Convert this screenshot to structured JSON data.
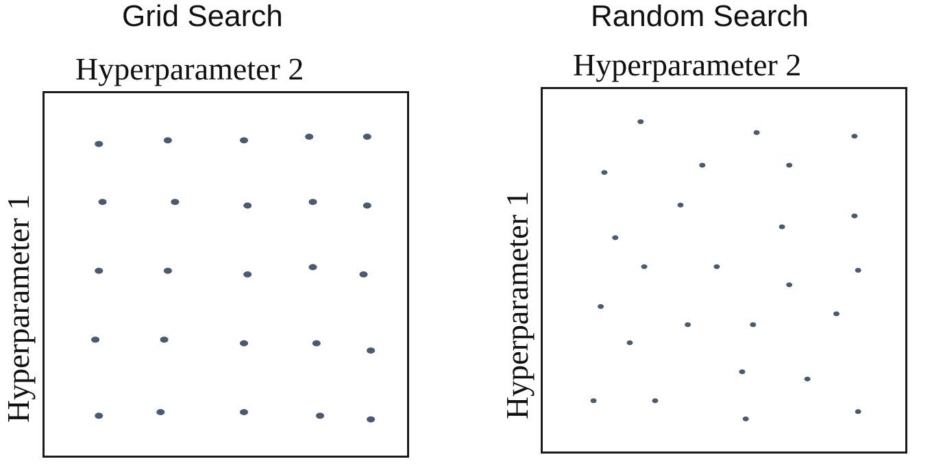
{
  "point_color": "#4a5a70",
  "panels": [
    {
      "id": "grid",
      "title": "Grid Search",
      "x_label": "Hyperparameter 2",
      "y_label": "Hyperparameter 1",
      "points": [
        [
          0.15,
          0.86
        ],
        [
          0.34,
          0.87
        ],
        [
          0.55,
          0.87
        ],
        [
          0.73,
          0.88
        ],
        [
          0.89,
          0.88
        ],
        [
          0.16,
          0.7
        ],
        [
          0.36,
          0.7
        ],
        [
          0.56,
          0.69
        ],
        [
          0.74,
          0.7
        ],
        [
          0.89,
          0.69
        ],
        [
          0.15,
          0.51
        ],
        [
          0.34,
          0.51
        ],
        [
          0.56,
          0.5
        ],
        [
          0.74,
          0.52
        ],
        [
          0.88,
          0.5
        ],
        [
          0.14,
          0.32
        ],
        [
          0.33,
          0.32
        ],
        [
          0.55,
          0.31
        ],
        [
          0.75,
          0.31
        ],
        [
          0.9,
          0.29
        ],
        [
          0.15,
          0.11
        ],
        [
          0.32,
          0.12
        ],
        [
          0.55,
          0.12
        ],
        [
          0.76,
          0.11
        ],
        [
          0.9,
          0.1
        ]
      ]
    },
    {
      "id": "random",
      "title": "Random Search",
      "x_label": "Hyperparameter 2",
      "y_label": "Hyperparameter 1",
      "points": [
        [
          0.27,
          0.91
        ],
        [
          0.59,
          0.88
        ],
        [
          0.86,
          0.87
        ],
        [
          0.17,
          0.77
        ],
        [
          0.44,
          0.79
        ],
        [
          0.68,
          0.79
        ],
        [
          0.38,
          0.68
        ],
        [
          0.66,
          0.62
        ],
        [
          0.86,
          0.65
        ],
        [
          0.2,
          0.59
        ],
        [
          0.28,
          0.51
        ],
        [
          0.48,
          0.51
        ],
        [
          0.87,
          0.5
        ],
        [
          0.16,
          0.4
        ],
        [
          0.68,
          0.46
        ],
        [
          0.81,
          0.38
        ],
        [
          0.24,
          0.3
        ],
        [
          0.4,
          0.35
        ],
        [
          0.58,
          0.35
        ],
        [
          0.55,
          0.22
        ],
        [
          0.73,
          0.2
        ],
        [
          0.14,
          0.14
        ],
        [
          0.31,
          0.14
        ],
        [
          0.56,
          0.09
        ],
        [
          0.87,
          0.11
        ]
      ]
    }
  ]
}
